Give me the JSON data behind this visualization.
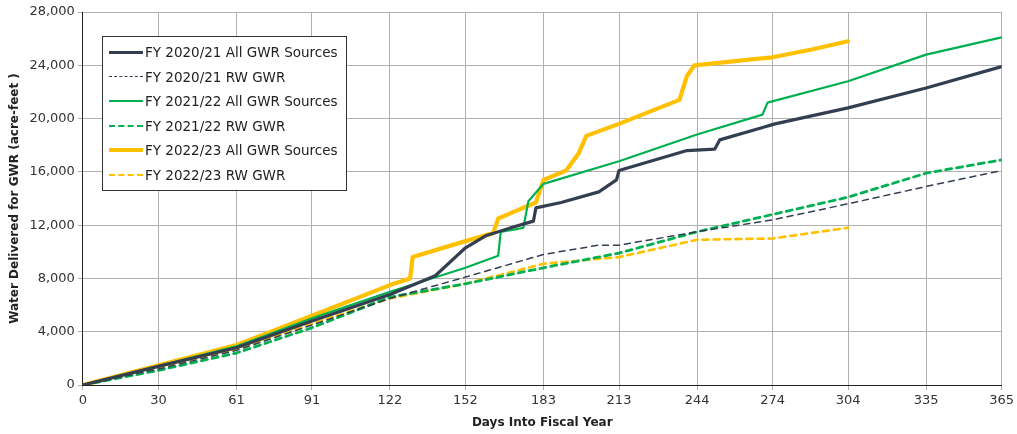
{
  "chart_data": {
    "type": "line",
    "xlabel": "Days Into Fiscal Year",
    "ylabel": "Water Delivered for GWR (acre-feet )",
    "xlim": [
      0,
      365
    ],
    "xticks": [
      0,
      30,
      61,
      91,
      122,
      152,
      183,
      213,
      244,
      274,
      304,
      335,
      365
    ],
    "ylim": [
      0,
      28000
    ],
    "yticks": [
      {
        "value": 0,
        "label": "0"
      },
      {
        "value": 4000,
        "label": "4,000"
      },
      {
        "value": 8000,
        "label": "8,000"
      },
      {
        "value": 12000,
        "label": "12,000"
      },
      {
        "value": 16000,
        "label": "16,000"
      },
      {
        "value": 20000,
        "label": "20,000"
      },
      {
        "value": 24000,
        "label": "24,000"
      },
      {
        "value": 28000,
        "label": "28,000"
      }
    ],
    "grid": true,
    "legend": "top left",
    "marker": "none",
    "series": [
      {
        "name": "FY 2020/21 All GWR Sources",
        "color": "#333f50",
        "line_style": "solid",
        "x": [
          0,
          30,
          61,
          91,
          122,
          140,
          152,
          160,
          170,
          179,
          180,
          190,
          205,
          212,
          213,
          240,
          251,
          253,
          275,
          304,
          335,
          365
        ],
        "values": [
          0,
          1400,
          2800,
          4800,
          6800,
          8200,
          10300,
          11200,
          11800,
          12300,
          13300,
          13700,
          14500,
          15400,
          16100,
          17600,
          17700,
          18400,
          19600,
          20800,
          22300,
          23900
        ]
      },
      {
        "name": "FY 2020/21 RW GWR",
        "color": "#333f50",
        "line_style": "dashed",
        "x": [
          0,
          30,
          61,
          91,
          122,
          152,
          183,
          205,
          213,
          244,
          274,
          304,
          335,
          365
        ],
        "values": [
          0,
          1200,
          2600,
          4500,
          6500,
          8100,
          9800,
          10500,
          10500,
          11500,
          12400,
          13600,
          14900,
          16100
        ]
      },
      {
        "name": "FY 2021/22 All GWR Sources",
        "color": "#00b050",
        "line_style": "solid",
        "x": [
          0,
          61,
          91,
          122,
          152,
          165,
          166,
          175,
          177,
          183,
          213,
          244,
          270,
          272,
          304,
          335,
          365
        ],
        "values": [
          0,
          2900,
          5000,
          7000,
          8800,
          9700,
          11500,
          11800,
          13800,
          15100,
          16800,
          18800,
          20300,
          21200,
          22800,
          24800,
          26100
        ]
      },
      {
        "name": "FY 2021/22 RW GWR",
        "color": "#00b050",
        "line_style": "dashed",
        "x": [
          0,
          30,
          61,
          91,
          122,
          152,
          183,
          213,
          244,
          274,
          304,
          335,
          365
        ],
        "values": [
          0,
          1100,
          2400,
          4300,
          6600,
          7600,
          8800,
          9900,
          11500,
          12800,
          14100,
          15900,
          16900
        ]
      },
      {
        "name": "FY 2022/23 All GWR Sources",
        "color": "#ffc000",
        "line_style": "solid",
        "x": [
          0,
          61,
          91,
          122,
          130,
          131,
          152,
          163,
          165,
          180,
          183,
          192,
          197,
          200,
          213,
          237,
          240,
          243,
          274,
          290,
          304
        ],
        "values": [
          0,
          3000,
          5200,
          7500,
          8000,
          9600,
          10800,
          11400,
          12500,
          13700,
          15400,
          16100,
          17400,
          18700,
          19600,
          21400,
          23200,
          24000,
          24600,
          25200,
          25800
        ]
      },
      {
        "name": "FY 2022/23 RW GWR",
        "color": "#ffc000",
        "line_style": "dashed",
        "x": [
          0,
          61,
          91,
          122,
          152,
          183,
          213,
          244,
          274,
          304
        ],
        "values": [
          0,
          2700,
          4600,
          6500,
          7600,
          9100,
          9600,
          10900,
          11000,
          11800
        ]
      }
    ]
  }
}
